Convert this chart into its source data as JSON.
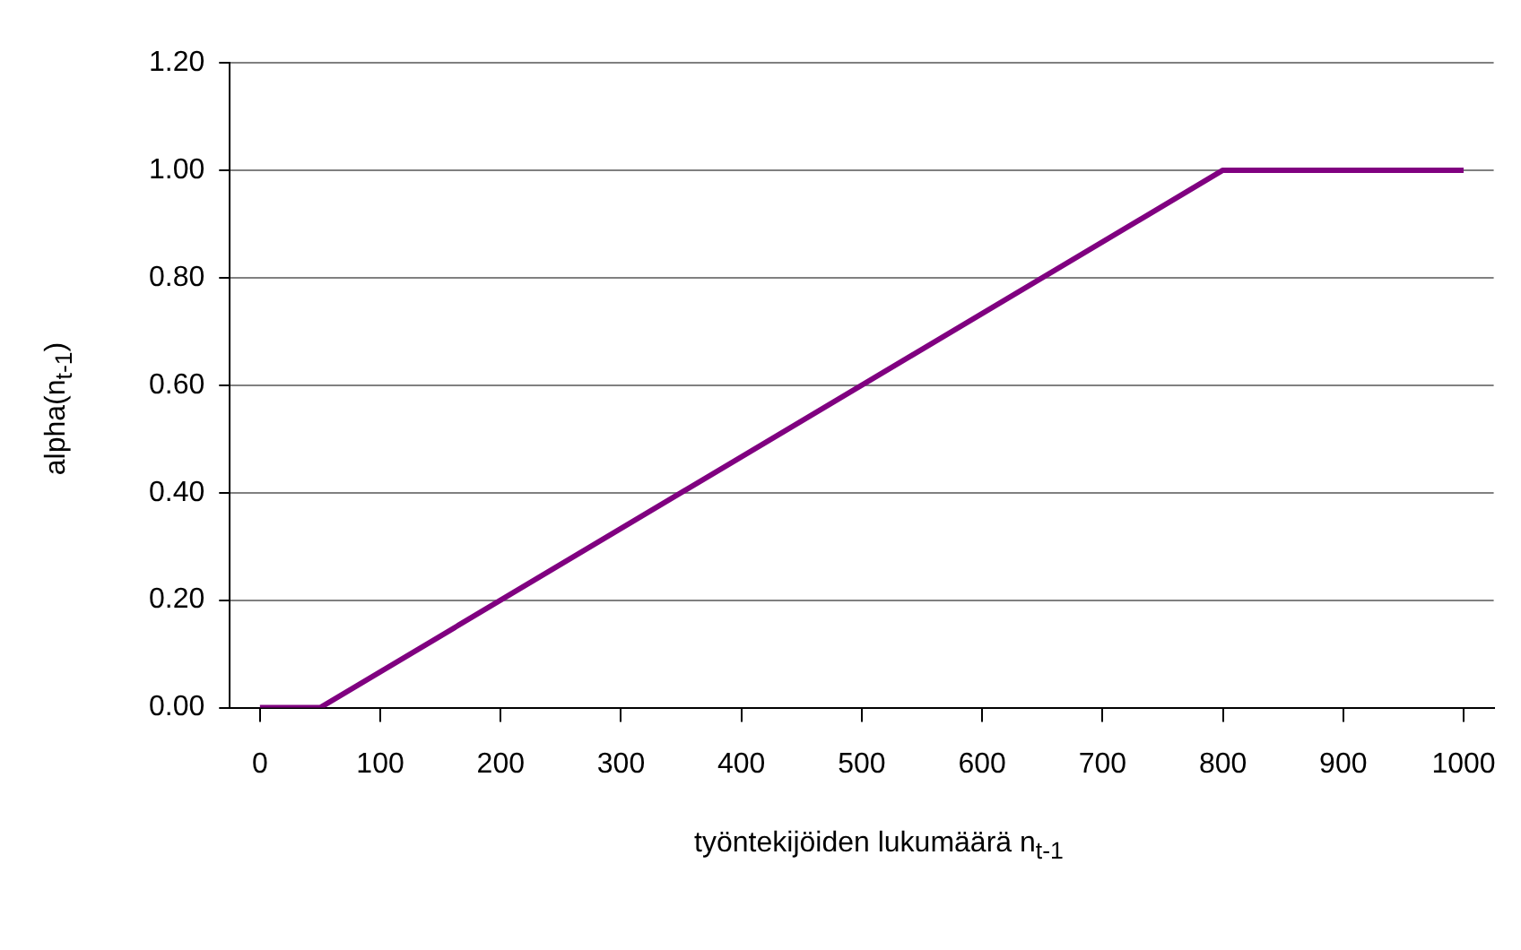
{
  "chart_data": {
    "type": "line",
    "xlabel": "työntekijöiden lukumäärä n$_{t-1}$",
    "ylabel": "alpha(n$_{t-1}$)",
    "x": [
      0,
      50,
      800,
      1000
    ],
    "series": [
      {
        "color": "#800080",
        "values": [
          0,
          0,
          1,
          1
        ]
      }
    ],
    "xlim": [
      -25,
      1025
    ],
    "xticks": [
      0,
      100,
      200,
      300,
      400,
      500,
      600,
      700,
      800,
      900,
      1000
    ],
    "ylim": [
      0,
      1.2
    ],
    "yticks": [
      {
        "value": 0,
        "label": "0.00"
      },
      {
        "value": 0.2,
        "label": "0.20"
      },
      {
        "value": 0.4,
        "label": "0.40"
      },
      {
        "value": 0.6,
        "label": "0.60"
      },
      {
        "value": 0.8,
        "label": "0.80"
      },
      {
        "value": 1,
        "label": "1.00"
      },
      {
        "value": 1.2,
        "label": "1.20"
      }
    ],
    "grid": "y",
    "legend": false,
    "marker": "none",
    "line_style": "solid"
  }
}
